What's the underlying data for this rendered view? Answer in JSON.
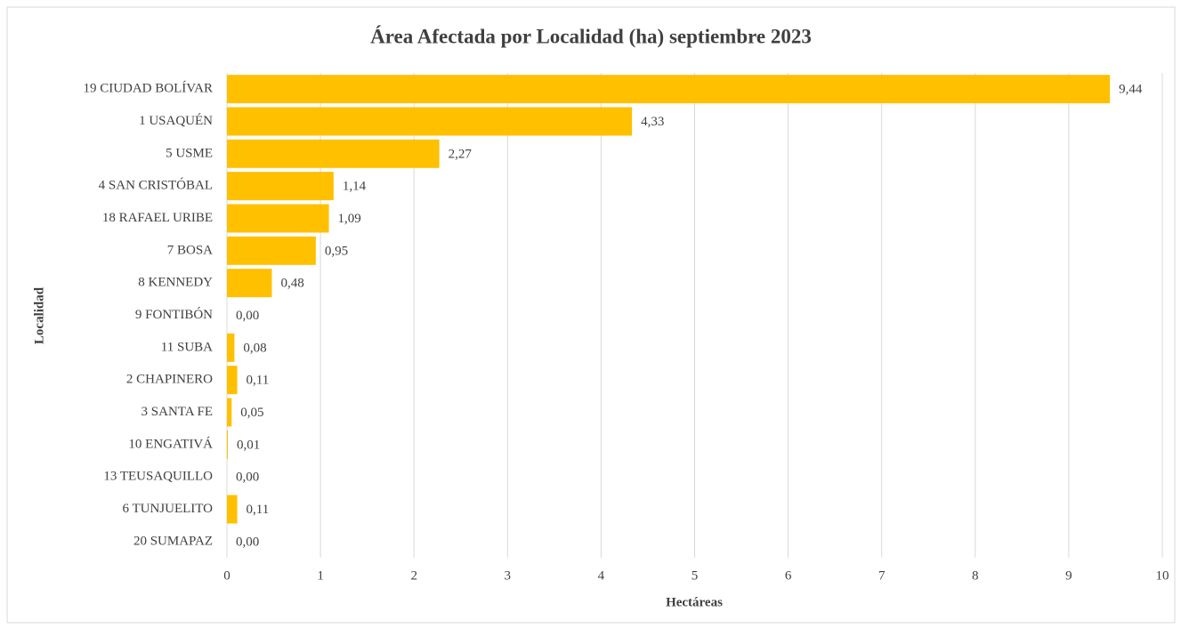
{
  "chart_data": {
    "type": "bar",
    "orientation": "horizontal",
    "title": "Área Afectada por Localidad (ha) septiembre 2023",
    "x_label": "Hectáreas",
    "y_label": "Localidad",
    "categories": [
      "19 CIUDAD BOLÍVAR",
      "1 USAQUÉN",
      "5 USME",
      "4 SAN CRISTÓBAL",
      "18 RAFAEL URIBE",
      "7 BOSA",
      "8 KENNEDY",
      "9 FONTIBÓN",
      "11 SUBA",
      "2 CHAPINERO",
      "3 SANTA FE",
      "10 ENGATIVÁ",
      "13 TEUSAQUILLO",
      "6 TUNJUELITO",
      "20 SUMAPAZ"
    ],
    "values": [
      9.44,
      4.33,
      2.27,
      1.14,
      1.09,
      0.95,
      0.48,
      0,
      0.08,
      0.11,
      0.05,
      0.01,
      0,
      0.11,
      0
    ],
    "value_labels": [
      "9,44",
      "4,33",
      "2,27",
      "1,14",
      "1,09",
      "0,95",
      "0,48",
      "0,00",
      "0,08",
      "0,11",
      "0,05",
      "0,01",
      "0,00",
      "0,11",
      "0,00"
    ],
    "color": "#ffc000",
    "xlim": [
      0,
      10
    ],
    "xticks": [
      0,
      1,
      2,
      3,
      4,
      5,
      6,
      7,
      8,
      9,
      10
    ],
    "grid": true
  }
}
